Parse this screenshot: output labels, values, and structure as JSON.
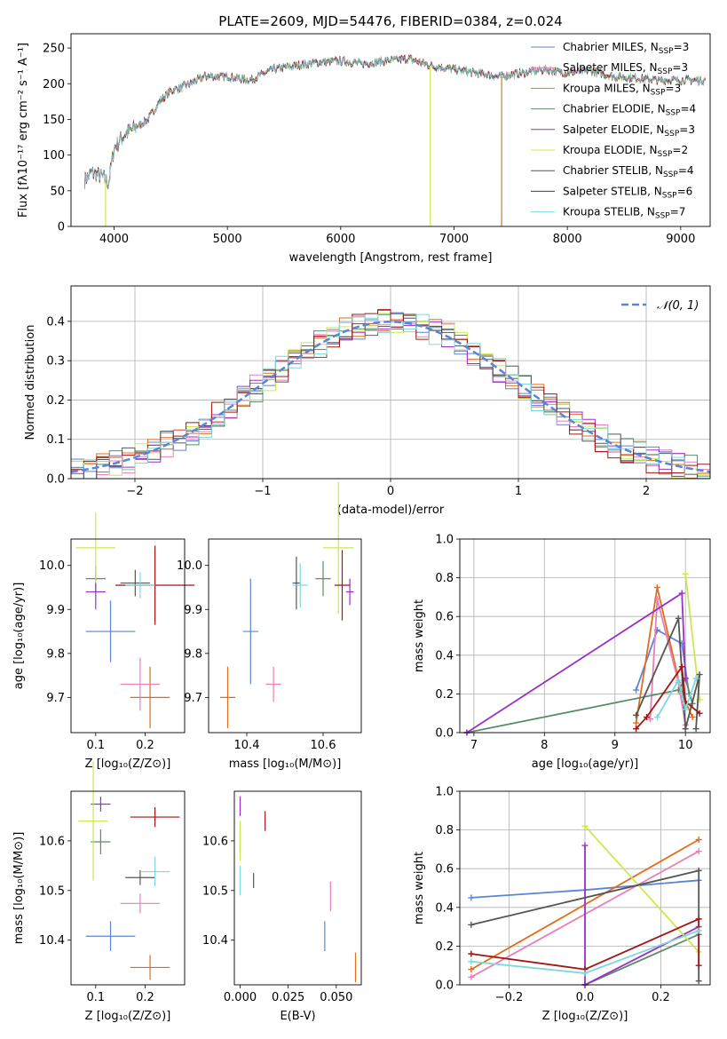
{
  "figure": {
    "title": "PLATE=2609, MJD=54476, FIBERID=0384, z=0.024"
  },
  "colors": {
    "blue": "#5b84d6",
    "orange": "#e06d1c",
    "pink": "#e87fb8",
    "darkgreen": "#5b8d6b",
    "purple": "#9b30c7",
    "yellowgreen": "#cde750",
    "darkgray": "#555555",
    "darkred": "#a01616",
    "cyan": "#7fd7dc"
  },
  "chart_data": [
    {
      "id": "spectrum",
      "type": "line",
      "xlabel": "wavelength [Angstrom, rest frame]",
      "ylabel": "Flux [fλ10⁻¹⁷ erg cm⁻² s⁻¹ A⁻¹]",
      "xlim": [
        3620,
        9260
      ],
      "ylim": [
        0,
        270
      ],
      "xticks": [
        4000,
        5000,
        6000,
        7000,
        8000,
        9000
      ],
      "yticks": [
        0,
        50,
        100,
        150,
        200,
        250
      ],
      "legend_position": "right",
      "series": [
        {
          "name": "Chabrier MILES, N",
          "sub": "SSP",
          "suffix": "=3",
          "color": "#5b84d6"
        },
        {
          "name": "Salpeter MILES, N",
          "sub": "SSP",
          "suffix": "=3",
          "color": "#e87fb8"
        },
        {
          "name": "Kroupa MILES, N",
          "sub": "SSP",
          "suffix": "=3",
          "color": "#c0822e"
        },
        {
          "name": "Chabrier ELODIE, N",
          "sub": "SSP",
          "suffix": "=4",
          "color": "#5b8d6b"
        },
        {
          "name": "Salpeter ELODIE, N",
          "sub": "SSP",
          "suffix": "=3",
          "color": "#9b30c7"
        },
        {
          "name": "Kroupa ELODIE, N",
          "sub": "SSP",
          "suffix": "=2",
          "color": "#cde750"
        },
        {
          "name": "Chabrier STELIB, N",
          "sub": "SSP",
          "suffix": "=4",
          "color": "#555555"
        },
        {
          "name": "Salpeter STELIB, N",
          "sub": "SSP",
          "suffix": "=6",
          "color": "#a01616"
        },
        {
          "name": "Kroupa STELIB, N",
          "sub": "SSP",
          "suffix": "=7",
          "color": "#7fd7dc"
        }
      ],
      "continuum": {
        "x": [
          3740,
          3800,
          3900,
          3950,
          4000,
          4100,
          4200,
          4300,
          4400,
          4500,
          4600,
          4800,
          5000,
          5200,
          5400,
          5600,
          5800,
          6000,
          6200,
          6400,
          6600,
          6800,
          7000,
          7200,
          7400,
          7600,
          7800,
          8000,
          8200,
          8400,
          8600,
          8800,
          9000,
          9220
        ],
        "y": [
          65,
          75,
          70,
          60,
          110,
          130,
          140,
          150,
          175,
          190,
          195,
          210,
          210,
          205,
          220,
          225,
          230,
          232,
          228,
          232,
          235,
          225,
          220,
          215,
          210,
          215,
          220,
          215,
          218,
          210,
          208,
          205,
          205,
          205
        ]
      },
      "drops": [
        {
          "x": 3925,
          "color": "#cde750"
        },
        {
          "x": 6790,
          "color": "#cde750"
        },
        {
          "x": 7420,
          "color": "#c0822e"
        }
      ]
    },
    {
      "id": "residuals",
      "type": "histogram",
      "xlabel": "(data-model)/error",
      "ylabel": "Normed distribution",
      "xlim": [
        -2.5,
        2.5
      ],
      "ylim": [
        0,
        0.49
      ],
      "xticks": [
        -2,
        -1,
        0,
        1,
        2
      ],
      "yticks": [
        0.0,
        0.1,
        0.2,
        0.3,
        0.4
      ],
      "grid": true,
      "legend": "𝒩(0, 1)",
      "legend_position": "top-right",
      "bins": 50
    },
    {
      "id": "age-vs-Z",
      "type": "errorbar",
      "xlabel": "Z [log₁₀(Z/Z⊙)]",
      "ylabel": "age  [log₁₀(age/yr)]",
      "xlim": [
        0.05,
        0.28
      ],
      "ylim": [
        9.62,
        10.06
      ],
      "xticks": [
        0.1,
        0.2
      ],
      "yticks": [
        9.7,
        9.8,
        9.9,
        10.0
      ],
      "points": [
        {
          "x": 0.13,
          "y": 9.85,
          "xerr": 0.05,
          "yerr": 0.07,
          "color": "#5b84d6"
        },
        {
          "x": 0.21,
          "y": 9.7,
          "xerr": 0.04,
          "yerr": 0.07,
          "color": "#e06d1c"
        },
        {
          "x": 0.19,
          "y": 9.73,
          "xerr": 0.04,
          "yerr": 0.06,
          "color": "#e87fb8"
        },
        {
          "x": 0.1,
          "y": 9.97,
          "xerr": 0.02,
          "yerr": 0.03,
          "color": "#5b8d6b"
        },
        {
          "x": 0.1,
          "y": 9.94,
          "xerr": 0.02,
          "yerr": 0.04,
          "color": "#9b30c7"
        },
        {
          "x": 0.1,
          "y": 10.04,
          "xerr": 0.04,
          "yerr": 0.08,
          "color": "#cde750"
        },
        {
          "x": 0.18,
          "y": 9.96,
          "xerr": 0.03,
          "yerr": 0.03,
          "color": "#555555"
        },
        {
          "x": 0.22,
          "y": 9.955,
          "xerr": 0.08,
          "yerr": 0.09,
          "color": "#a01616"
        },
        {
          "x": 0.19,
          "y": 9.955,
          "xerr": 0.03,
          "yerr": 0.03,
          "color": "#7fd7dc"
        }
      ]
    },
    {
      "id": "age-vs-mass",
      "type": "errorbar",
      "xlabel": "mass [log₁₀(M/M⊙)]",
      "xlim": [
        10.3,
        10.7
      ],
      "ylim": [
        9.62,
        10.06
      ],
      "xticks": [
        10.4,
        10.6
      ],
      "yticks": [
        9.7,
        9.8,
        9.9,
        10.0
      ],
      "points": [
        {
          "x": 10.41,
          "y": 9.85,
          "xerr": 0.02,
          "yerr": 0.12,
          "color": "#5b84d6"
        },
        {
          "x": 10.35,
          "y": 9.7,
          "xerr": 0.02,
          "yerr": 0.07,
          "color": "#e06d1c"
        },
        {
          "x": 10.47,
          "y": 9.73,
          "xerr": 0.02,
          "yerr": 0.04,
          "color": "#e87fb8"
        },
        {
          "x": 10.6,
          "y": 9.97,
          "xerr": 0.02,
          "yerr": 0.04,
          "color": "#5b8d6b"
        },
        {
          "x": 10.67,
          "y": 9.94,
          "xerr": 0.01,
          "yerr": 0.03,
          "color": "#9b30c7"
        },
        {
          "x": 10.64,
          "y": 10.04,
          "xerr": 0.04,
          "yerr": 0.15,
          "color": "#cde750"
        },
        {
          "x": 10.53,
          "y": 9.96,
          "xerr": 0.01,
          "yerr": 0.06,
          "color": "#555555"
        },
        {
          "x": 10.65,
          "y": 9.955,
          "xerr": 0.02,
          "yerr": 0.08,
          "color": "#a01616"
        },
        {
          "x": 10.54,
          "y": 9.955,
          "xerr": 0.02,
          "yerr": 0.05,
          "color": "#7fd7dc"
        }
      ]
    },
    {
      "id": "weight-vs-age",
      "type": "line",
      "xlabel": "age  [log₁₀(age/yr)]",
      "ylabel": "mass weight",
      "xlim": [
        6.8,
        10.35
      ],
      "ylim": [
        0,
        1.0
      ],
      "xticks": [
        7,
        8,
        9,
        10
      ],
      "yticks": [
        0.0,
        0.2,
        0.4,
        0.6,
        0.8,
        1.0
      ],
      "grid": true,
      "series": [
        {
          "color": "#5b84d6",
          "x": [
            9.3,
            9.6,
            9.95,
            10.05
          ],
          "y": [
            0.22,
            0.53,
            0.46,
            0.2
          ]
        },
        {
          "color": "#e06d1c",
          "x": [
            9.3,
            9.6,
            9.95,
            10.1
          ],
          "y": [
            0.05,
            0.75,
            0.2,
            0.08
          ]
        },
        {
          "color": "#e87fb8",
          "x": [
            9.5,
            9.6,
            9.9,
            10.0
          ],
          "y": [
            0.07,
            0.69,
            0.26,
            0.04
          ]
        },
        {
          "color": "#5b8d6b",
          "x": [
            6.9,
            9.9,
            10.0,
            10.1
          ],
          "y": [
            0.0,
            0.22,
            0.28,
            0.15
          ]
        },
        {
          "color": "#9b30c7",
          "x": [
            6.9,
            9.95,
            10.0
          ],
          "y": [
            0.0,
            0.72,
            0.28
          ]
        },
        {
          "color": "#cde750",
          "x": [
            10.0,
            10.2
          ],
          "y": [
            0.82,
            0.17
          ]
        },
        {
          "color": "#555555",
          "x": [
            9.3,
            9.9,
            10.0,
            10.2,
            10.15
          ],
          "y": [
            0.09,
            0.59,
            0.02,
            0.3,
            0.02
          ]
        },
        {
          "color": "#a01616",
          "x": [
            9.3,
            9.45,
            9.95,
            10.0,
            10.2
          ],
          "y": [
            0.02,
            0.08,
            0.34,
            0.16,
            0.1
          ]
        },
        {
          "color": "#7fd7dc",
          "x": [
            9.6,
            9.9,
            10.0,
            10.15
          ],
          "y": [
            0.08,
            0.27,
            0.12,
            0.28
          ]
        }
      ]
    },
    {
      "id": "mass-vs-Z",
      "type": "errorbar",
      "xlabel": "Z [log₁₀(Z/Z⊙)]",
      "ylabel": "mass [log₁₀(M/M⊙)]",
      "xlim": [
        0.05,
        0.28
      ],
      "ylim": [
        10.31,
        10.7
      ],
      "xticks": [
        0.1,
        0.2
      ],
      "yticks": [
        10.4,
        10.5,
        10.6
      ],
      "points": [
        {
          "x": 0.13,
          "y": 10.408,
          "xerr": 0.05,
          "yerr": 0.03,
          "color": "#5b84d6"
        },
        {
          "x": 0.21,
          "y": 10.345,
          "xerr": 0.04,
          "yerr": 0.025,
          "color": "#e06d1c"
        },
        {
          "x": 0.19,
          "y": 10.474,
          "xerr": 0.04,
          "yerr": 0.02,
          "color": "#e87fb8"
        },
        {
          "x": 0.11,
          "y": 10.598,
          "xerr": 0.02,
          "yerr": 0.025,
          "color": "#5b8d6b"
        },
        {
          "x": 0.11,
          "y": 10.674,
          "xerr": 0.02,
          "yerr": 0.015,
          "color": "#9b30c7"
        },
        {
          "x": 0.095,
          "y": 10.64,
          "xerr": 0.03,
          "yerr": 0.12,
          "color": "#cde750"
        },
        {
          "x": 0.19,
          "y": 10.526,
          "xerr": 0.03,
          "yerr": 0.015,
          "color": "#555555"
        },
        {
          "x": 0.22,
          "y": 10.648,
          "xerr": 0.05,
          "yerr": 0.02,
          "color": "#a01616"
        },
        {
          "x": 0.22,
          "y": 10.538,
          "xerr": 0.03,
          "yerr": 0.03,
          "color": "#7fd7dc"
        }
      ]
    },
    {
      "id": "mass-vs-ebv",
      "type": "errorbar",
      "xlabel": "E(B-V)",
      "xlim": [
        -0.003,
        0.063
      ],
      "ylim": [
        10.31,
        10.7
      ],
      "xticks": [
        0.0,
        0.025,
        0.05
      ],
      "tick_labels": [
        "0.000",
        "0.025",
        "0.050"
      ],
      "yticks": [
        10.4,
        10.5,
        10.6
      ],
      "points": [
        {
          "x": 0.044,
          "y": 10.408,
          "xerr": 0,
          "yerr": 0.03,
          "color": "#5b84d6"
        },
        {
          "x": 0.06,
          "y": 10.345,
          "xerr": 0,
          "yerr": 0.03,
          "color": "#e06d1c"
        },
        {
          "x": 0.047,
          "y": 10.488,
          "xerr": 0,
          "yerr": 0.03,
          "color": "#e87fb8"
        },
        {
          "x": 0.0,
          "y": 10.6,
          "xerr": 0,
          "yerr": 0.02,
          "color": "#5b8d6b"
        },
        {
          "x": 0.0,
          "y": 10.67,
          "xerr": 0,
          "yerr": 0.02,
          "color": "#9b30c7"
        },
        {
          "x": 0.0,
          "y": 10.6,
          "xerr": 0,
          "yerr": 0.04,
          "color": "#cde750"
        },
        {
          "x": 0.007,
          "y": 10.52,
          "xerr": 0,
          "yerr": 0.015,
          "color": "#555555"
        },
        {
          "x": 0.013,
          "y": 10.64,
          "xerr": 0,
          "yerr": 0.02,
          "color": "#a01616"
        },
        {
          "x": 0.0,
          "y": 10.52,
          "xerr": 0,
          "yerr": 0.03,
          "color": "#7fd7dc"
        }
      ]
    },
    {
      "id": "weight-vs-Z",
      "type": "line",
      "xlabel": "Z [log₁₀(Z/Z⊙)]",
      "ylabel": "mass weight",
      "xlim": [
        -0.33,
        0.33
      ],
      "ylim": [
        0,
        1.0
      ],
      "xticks": [
        -0.2,
        0.0,
        0.2
      ],
      "tick_labels": [
        "−0.2",
        "0.0",
        "0.2"
      ],
      "yticks": [
        0.0,
        0.2,
        0.4,
        0.6,
        0.8,
        1.0
      ],
      "grid": true,
      "series": [
        {
          "color": "#5b84d6",
          "x": [
            -0.3,
            0.0,
            0.3
          ],
          "y": [
            0.45,
            0.49,
            0.54
          ]
        },
        {
          "color": "#e06d1c",
          "x": [
            -0.3,
            0.3
          ],
          "y": [
            0.08,
            0.75
          ]
        },
        {
          "color": "#e87fb8",
          "x": [
            -0.3,
            0.3
          ],
          "y": [
            0.04,
            0.69
          ]
        },
        {
          "color": "#5b8d6b",
          "x": [
            0.0,
            0.3
          ],
          "y": [
            0.0,
            0.26
          ]
        },
        {
          "color": "#9b30c7",
          "x": [
            0.0,
            0.0,
            0.3
          ],
          "y": [
            0.72,
            0.0,
            0.3
          ]
        },
        {
          "color": "#cde750",
          "x": [
            0.0,
            0.3
          ],
          "y": [
            0.82,
            0.17
          ]
        },
        {
          "color": "#555555",
          "x": [
            -0.3,
            0.3,
            0.3
          ],
          "y": [
            0.31,
            0.59,
            0.02
          ]
        },
        {
          "color": "#a01616",
          "x": [
            -0.3,
            0.0,
            0.3,
            0.3
          ],
          "y": [
            0.16,
            0.08,
            0.34,
            0.1
          ]
        },
        {
          "color": "#7fd7dc",
          "x": [
            -0.3,
            0.0,
            0.3
          ],
          "y": [
            0.12,
            0.06,
            0.28
          ]
        }
      ]
    }
  ]
}
